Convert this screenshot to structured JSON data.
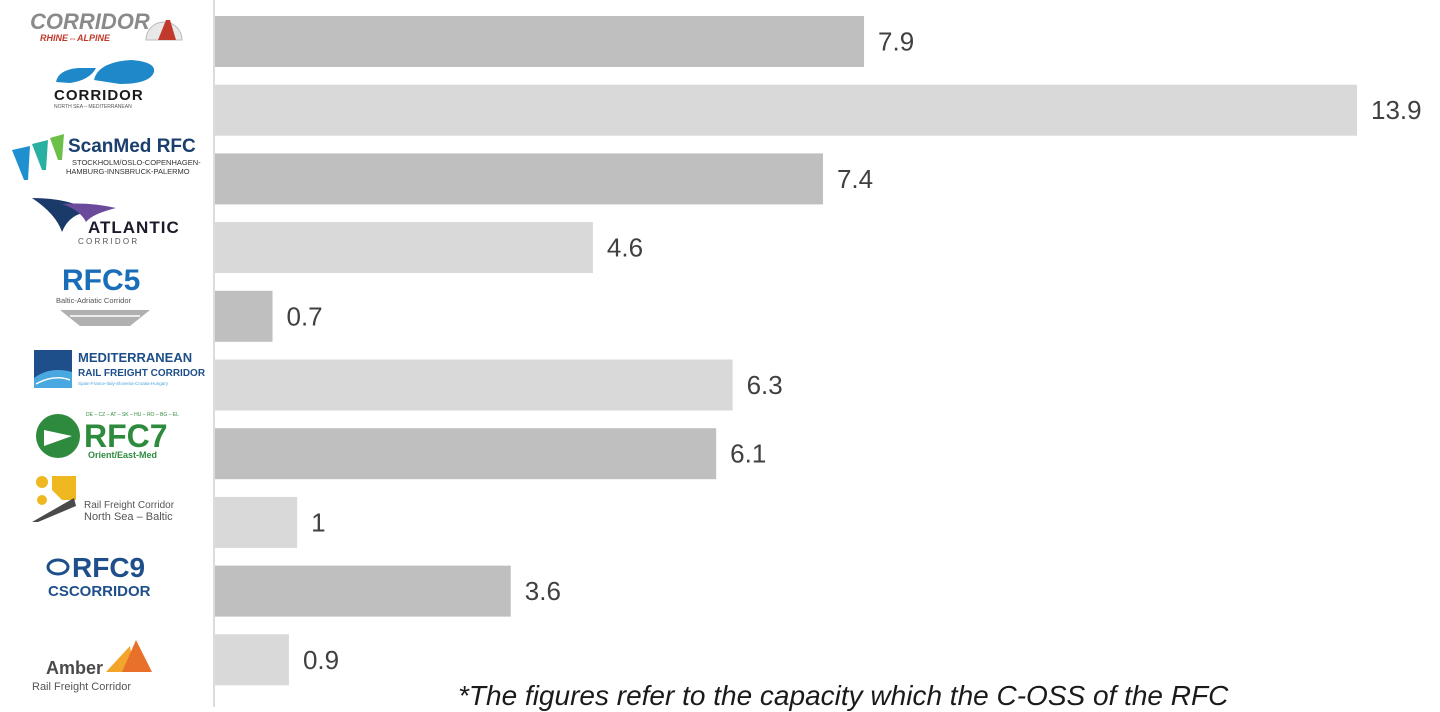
{
  "chart_data": {
    "type": "bar",
    "orientation": "horizontal",
    "categories": [
      "Rhine-Alpine",
      "North Sea - Mediterranean",
      "ScanMed RFC",
      "Atlantic",
      "RFC5 Baltic-Adriatic",
      "Mediterranean",
      "RFC7 Orient/East-Med",
      "North Sea - Baltic",
      "RFC9",
      "Amber"
    ],
    "values": [
      7.9,
      13.9,
      7.4,
      4.6,
      0.7,
      6.3,
      6.1,
      1,
      3.6,
      0.9
    ],
    "value_labels": [
      "7.9",
      "13.9",
      "7.4",
      "4.6",
      "0.7",
      "6.3",
      "6.1",
      "1",
      "3.6",
      "0.9"
    ],
    "bar_colors": [
      "#bfbfbf",
      "#d9d9d9"
    ],
    "xlim": [
      0,
      13.9
    ],
    "grid": false,
    "legend": "none",
    "footnote": "*The figures refer to the capacity which the C-OSS of the RFC"
  },
  "logos": {
    "rhine_alpine": {
      "line1": "CORRIDOR",
      "line2": "RHINE⇔ALPINE"
    },
    "nsm": {
      "line1": "CORRIDOR",
      "line2": "NORTH SEA – MEDITERRANEAN"
    },
    "scanmed": {
      "line1": "ScanMed RFC",
      "line2": "STOCKHOLM/OSLO-COPENHAGEN-",
      "line3": "HAMBURG-INNSBRUCK-PALERMO"
    },
    "atlantic": {
      "line1": "ATLANTIC",
      "line2": "C O R R I D O R"
    },
    "rfc5": {
      "line1": "RFC5",
      "line2": "Baltic-Adriatic Corridor"
    },
    "med": {
      "line1": "MEDITERRANEAN",
      "line2": "RAIL FREIGHT CORRIDOR",
      "line3": "Spain-France-Italy-Slovenia-Croatia-Hungary"
    },
    "rfc7": {
      "line0": "DE – CZ – AT – SK – HU – RO – BG – EL",
      "line1": "RFC7",
      "line2": "Orient/East-Med"
    },
    "nsb": {
      "line1": "Rail Freight Corridor",
      "line2": "North Sea – Baltic"
    },
    "rfc9": {
      "line1": "RFC9",
      "line2": "CSCORRIDOR"
    },
    "amber": {
      "line1": "Amber",
      "line2": "Rail Freight Corridor"
    }
  },
  "colors": {
    "axis": "#d0d0d0",
    "rfc_green": "#2e8b3e",
    "rfc_blue": "#1f4f8a"
  }
}
